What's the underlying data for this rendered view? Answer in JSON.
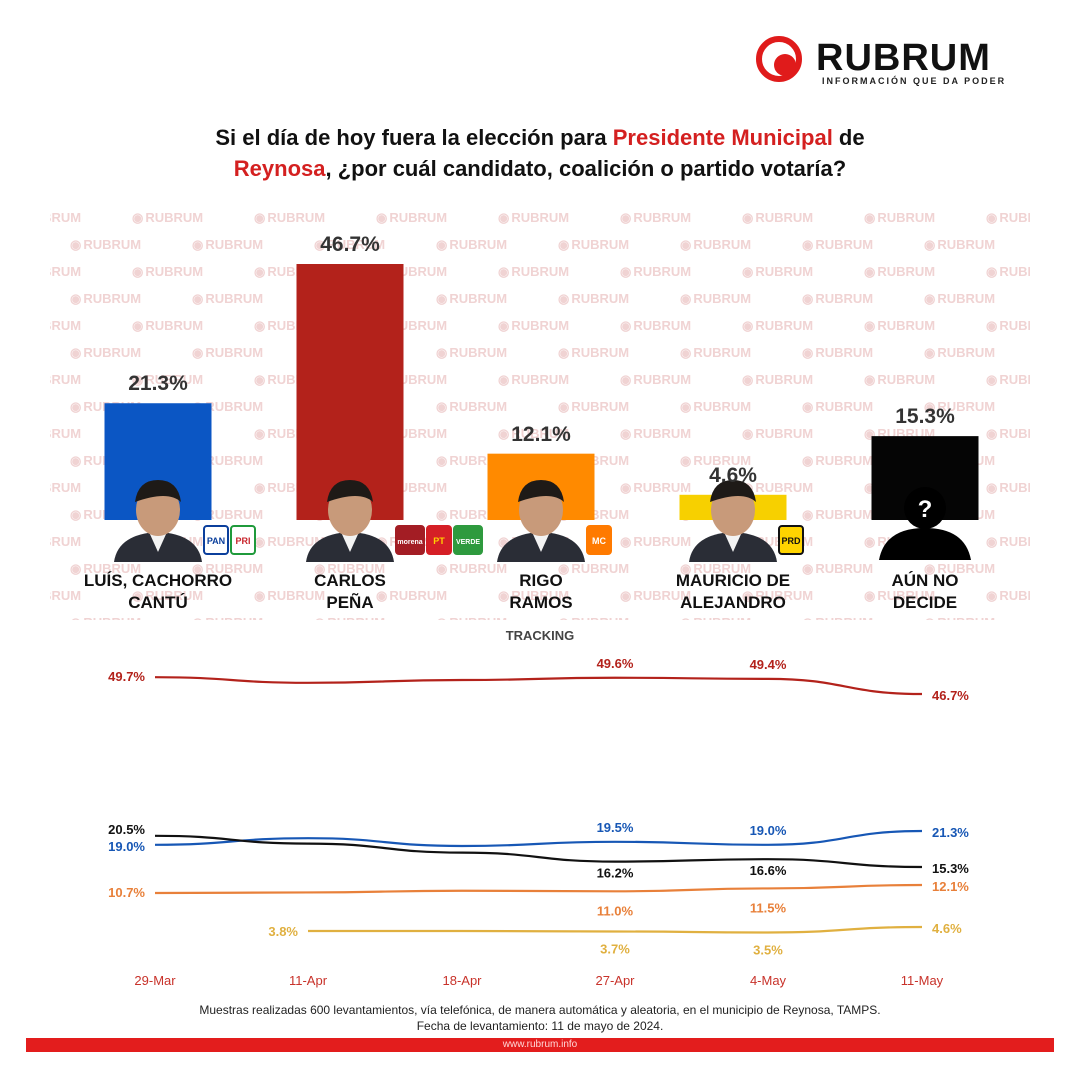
{
  "brand": {
    "name": "RUBRUM",
    "tagline": "INFORMACIÓN QUE DA PODER",
    "watermark": "RUBRUM",
    "url": "www.rubrum.info"
  },
  "title": {
    "part1": "Si el día de hoy fuera la elección para ",
    "highlight1": "Presidente Municipal",
    "part2": " de ",
    "highlight2": "Reynosa",
    "part3": ", ¿por cuál candidato, coalición o partido votaría?"
  },
  "tracking_label": "TRACKING",
  "footer": {
    "line1": "Muestras realizadas 600 levantamientos, vía telefónica, de manera automática y aleatoria, en el municipio de Reynosa, TAMPS.",
    "line2": "Fecha de levantamiento: 11 de mayo de 2024."
  },
  "chart_data": [
    {
      "type": "bar",
      "categories": [
        "LUÍS, CACHORRO CANTÚ",
        "CARLOS PEÑA",
        "RIGO RAMOS",
        "MAURICIO DE ALEJANDRO",
        "AÚN NO DECIDE"
      ],
      "label_lines": [
        [
          "LUÍS, CACHORRO",
          "CANTÚ"
        ],
        [
          "CARLOS",
          "PEÑA"
        ],
        [
          "RIGO",
          "RAMOS"
        ],
        [
          "MAURICIO DE",
          "ALEJANDRO"
        ],
        [
          "AÚN NO",
          "DECIDE"
        ]
      ],
      "values": [
        21.3,
        46.7,
        12.1,
        4.6,
        15.3
      ],
      "value_labels": [
        "21.3%",
        "46.7%",
        "12.1%",
        "4.6%",
        "15.3%"
      ],
      "colors": [
        "#0b56c4",
        "#b3221b",
        "#ff8a00",
        "#f7d000",
        "#050505"
      ],
      "party_badges": [
        [
          {
            "text": "PAN",
            "bg": "#ffffff",
            "fg": "#0b3f9c",
            "border": "#0b3f9c"
          },
          {
            "text": "PRI",
            "bg": "#ffffff",
            "fg": "#c9252c",
            "border": "#1f9a3b"
          }
        ],
        [
          {
            "text": "morena",
            "bg": "#a31d24",
            "fg": "#ffffff",
            "border": "#a31d24"
          },
          {
            "text": "PT",
            "bg": "#d51f26",
            "fg": "#ffd200",
            "border": "#d51f26"
          },
          {
            "text": "VERDE",
            "bg": "#2e9a3e",
            "fg": "#ffffff",
            "border": "#2e9a3e"
          }
        ],
        [
          {
            "text": "MC",
            "bg": "#ff7a00",
            "fg": "#ffffff",
            "border": "#ff7a00"
          }
        ],
        [
          {
            "text": "PRD",
            "bg": "#ffd400",
            "fg": "#111111",
            "border": "#111111"
          }
        ],
        []
      ],
      "ylim": [
        0,
        50
      ]
    },
    {
      "type": "line",
      "title": "TRACKING",
      "x": [
        "29-Mar",
        "11-Apr",
        "18-Apr",
        "27-Apr",
        "4-May",
        "11-May"
      ],
      "ylim": [
        0,
        55
      ],
      "series": [
        {
          "name": "CARLOS PEÑA",
          "color": "#b3221b",
          "values": [
            49.7,
            48.7,
            49.2,
            49.6,
            49.4,
            46.7
          ],
          "labels": [
            "49.7%",
            "",
            "",
            "49.6%",
            "49.4%",
            "46.7%"
          ]
        },
        {
          "name": "LUÍS, CACHORRO CANTÚ",
          "color": "#1757b5",
          "values": [
            19.0,
            20.1,
            18.8,
            19.5,
            19.0,
            21.3
          ],
          "labels": [
            "19.0%",
            "",
            "",
            "19.5%",
            "19.0%",
            "21.3%"
          ]
        },
        {
          "name": "AÚN NO DECIDE",
          "color": "#111111",
          "values": [
            20.5,
            19.2,
            17.7,
            16.2,
            16.6,
            15.3
          ],
          "labels": [
            "20.5%",
            "",
            "",
            "16.2%",
            "16.6%",
            "15.3%"
          ]
        },
        {
          "name": "RIGO RAMOS",
          "color": "#e8803a",
          "values": [
            10.7,
            10.8,
            11.1,
            11.0,
            11.5,
            12.1
          ],
          "labels": [
            "10.7%",
            "",
            "",
            "11.0%",
            "11.5%",
            "12.1%"
          ]
        },
        {
          "name": "MAURICIO DE ALEJANDRO",
          "color": "#e0b040",
          "values": [
            null,
            3.8,
            3.8,
            3.7,
            3.5,
            4.6
          ],
          "labels": [
            "",
            "3.8%",
            "",
            "3.7%",
            "3.5%",
            "4.6%"
          ]
        }
      ]
    }
  ]
}
